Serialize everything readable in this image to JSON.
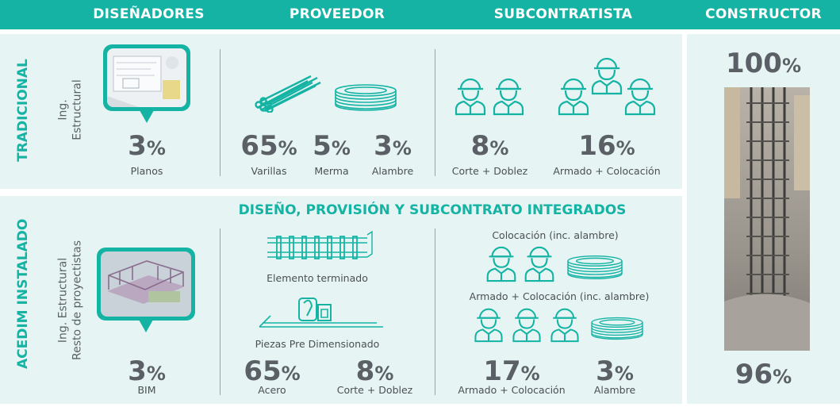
{
  "header": {
    "disenadores": "DISEÑADORES",
    "proveedor": "PROVEEDOR",
    "subcontratista": "SUBCONTRATISTA",
    "constructor": "CONSTRUCTOR"
  },
  "tradicional": {
    "title": "TRADICIONAL",
    "sub1": "Ing.",
    "sub2": "Estructural",
    "disenadores": {
      "pct": "3",
      "label": "Planos"
    },
    "proveedor": [
      {
        "pct": "65",
        "label": "Varillas"
      },
      {
        "pct": "5",
        "label": "Merma"
      },
      {
        "pct": "3",
        "label": "Alambre"
      }
    ],
    "subcontratista": [
      {
        "pct": "8",
        "label": "Corte + Doblez"
      },
      {
        "pct": "16",
        "label": "Armado + Colocación"
      }
    ]
  },
  "acedim": {
    "title": "ACEDIM INSTALADO",
    "sub1": "Ing. Estructural",
    "sub2": "Resto de proyectistas",
    "banner": "DISEÑO, PROVISIÓN Y SUBCONTRATO INTEGRADOS",
    "disenadores": {
      "pct": "3",
      "label": "BIM"
    },
    "proveedor": {
      "caption1": "Elemento terminado",
      "caption2": "Piezas Pre Dimensionado",
      "items": [
        {
          "pct": "65",
          "label": "Acero"
        },
        {
          "pct": "8",
          "label": "Corte + Doblez"
        }
      ]
    },
    "subcontratista": {
      "caption1": "Colocación (inc. alambre)",
      "caption2": "Armado + Colocación (inc. alambre)",
      "items": [
        {
          "pct": "17",
          "label": "Armado + Colocación"
        },
        {
          "pct": "3",
          "label": "Alambre"
        }
      ]
    }
  },
  "constructor": {
    "top_pct": "100",
    "bottom_pct": "96"
  },
  "percent_sign": "%",
  "colors": {
    "accent": "#14b3a4",
    "panel": "#e6f4f3",
    "text": "#5a6066"
  },
  "icons": [
    "blueprint-image",
    "rebar-bundle-icon",
    "wire-coil-icon",
    "worker-icon",
    "bim-model-image",
    "finished-cage-icon",
    "precut-pieces-icon",
    "rebar-column-photo"
  ]
}
